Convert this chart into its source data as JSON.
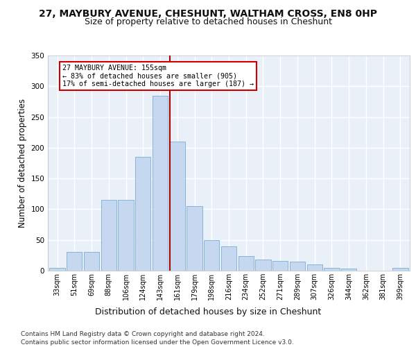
{
  "title1": "27, MAYBURY AVENUE, CHESHUNT, WALTHAM CROSS, EN8 0HP",
  "title2": "Size of property relative to detached houses in Cheshunt",
  "xlabel": "Distribution of detached houses by size in Cheshunt",
  "ylabel": "Number of detached properties",
  "categories": [
    "33sqm",
    "51sqm",
    "69sqm",
    "88sqm",
    "106sqm",
    "124sqm",
    "143sqm",
    "161sqm",
    "179sqm",
    "198sqm",
    "216sqm",
    "234sqm",
    "252sqm",
    "271sqm",
    "289sqm",
    "307sqm",
    "326sqm",
    "344sqm",
    "362sqm",
    "381sqm",
    "399sqm"
  ],
  "values": [
    5,
    30,
    30,
    115,
    115,
    185,
    285,
    210,
    105,
    50,
    40,
    24,
    18,
    16,
    15,
    10,
    4,
    3,
    0,
    0,
    4
  ],
  "bar_color": "#c5d8f0",
  "bar_edge_color": "#7aadd4",
  "vline_color": "#aa0000",
  "annotation_text": "27 MAYBURY AVENUE: 155sqm\n← 83% of detached houses are smaller (905)\n17% of semi-detached houses are larger (187) →",
  "annotation_box_color": "#ffffff",
  "annotation_box_edge": "#cc0000",
  "ylim": [
    0,
    350
  ],
  "yticks": [
    0,
    50,
    100,
    150,
    200,
    250,
    300,
    350
  ],
  "footnote1": "Contains HM Land Registry data © Crown copyright and database right 2024.",
  "footnote2": "Contains public sector information licensed under the Open Government Licence v3.0.",
  "bg_color": "#eaf0f8",
  "grid_color": "#ffffff"
}
